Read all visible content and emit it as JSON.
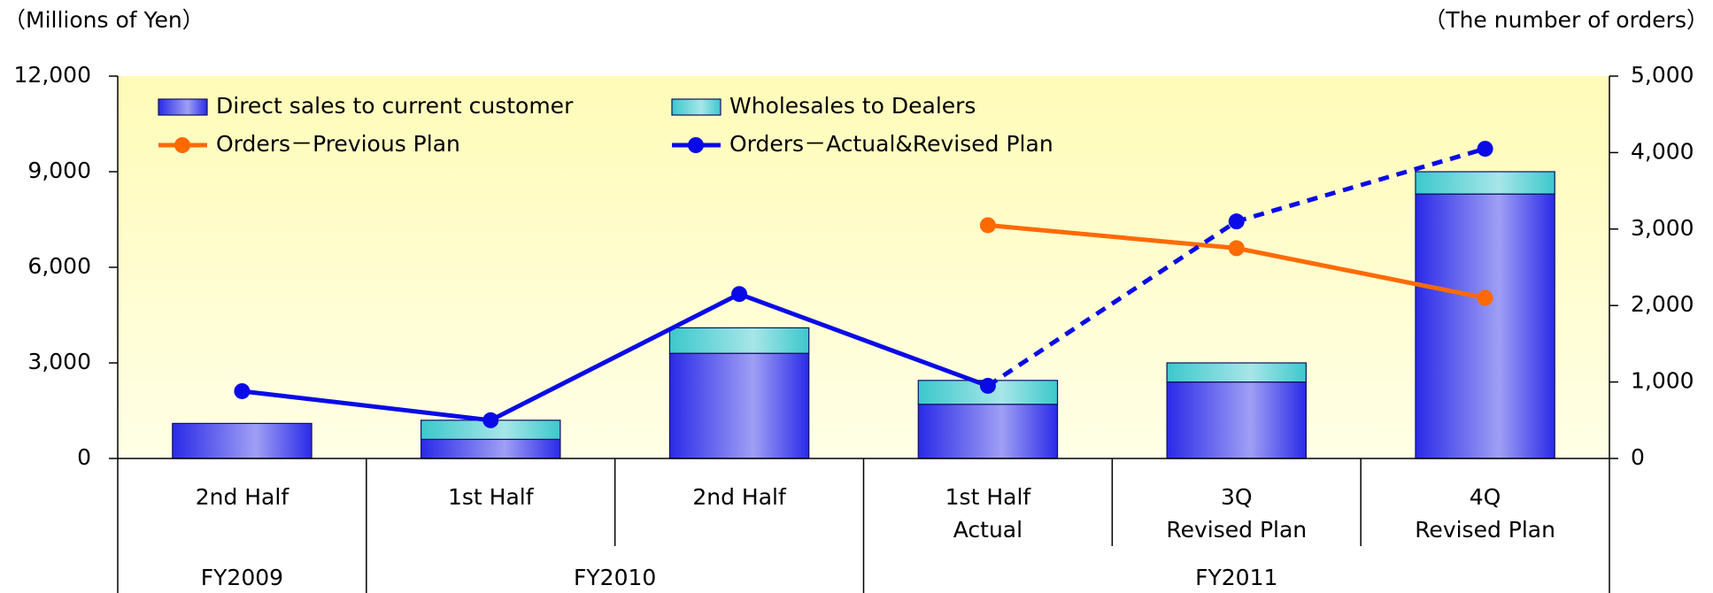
{
  "chart_data": {
    "type": "bar",
    "y_axis_label": "（Millions of Yen）",
    "y2_axis_label": "（The number of orders）",
    "categories": [
      [
        "2nd Half"
      ],
      [
        "1st Half"
      ],
      [
        "2nd Half"
      ],
      [
        "1st Half",
        "Actual"
      ],
      [
        "3Q",
        "Revised Plan"
      ],
      [
        "4Q",
        "Revised Plan"
      ]
    ],
    "groups": [
      {
        "label": "FY2009",
        "span": 1
      },
      {
        "label": "FY2010",
        "span": 2
      },
      {
        "label": "FY2011",
        "span": 3
      }
    ],
    "ylim": [
      0,
      12000
    ],
    "yticks": [
      0,
      {
        "value": 3000,
        "label": "3,000"
      },
      {
        "value": 6000,
        "label": "6,000"
      },
      {
        "value": 9000,
        "label": "9,000"
      },
      {
        "value": 12000,
        "label": "12,000"
      }
    ],
    "y2lim": [
      0,
      5000
    ],
    "y2ticks": [
      0,
      {
        "value": 1000,
        "label": "1,000"
      },
      {
        "value": 2000,
        "label": "2,000"
      },
      {
        "value": 3000,
        "label": "3,000"
      },
      {
        "value": 4000,
        "label": "4,000"
      },
      {
        "value": 5000,
        "label": "5,000"
      }
    ],
    "stacked": true,
    "series": [
      {
        "name": "Direct sales to current customer",
        "type": "bar",
        "color": "#2a2ae8",
        "values": [
          1100,
          600,
          3300,
          1700,
          2400,
          8300
        ]
      },
      {
        "name": "Wholesales to Dealers",
        "type": "bar",
        "color": "#3cc8cc",
        "values": [
          0,
          600,
          800,
          750,
          600,
          700
        ]
      },
      {
        "name": "Orders－Previous Plan",
        "type": "line",
        "axis": "y2",
        "color": "#ff6a00",
        "values": [
          null,
          null,
          null,
          3050,
          2750,
          2100
        ]
      },
      {
        "name": "Orders－Actual&Revised Plan",
        "type": "line",
        "axis": "y2",
        "color": "#0a0ae6",
        "dashed_from": 3,
        "values": [
          880,
          500,
          2150,
          950,
          3100,
          4050
        ]
      }
    ]
  }
}
